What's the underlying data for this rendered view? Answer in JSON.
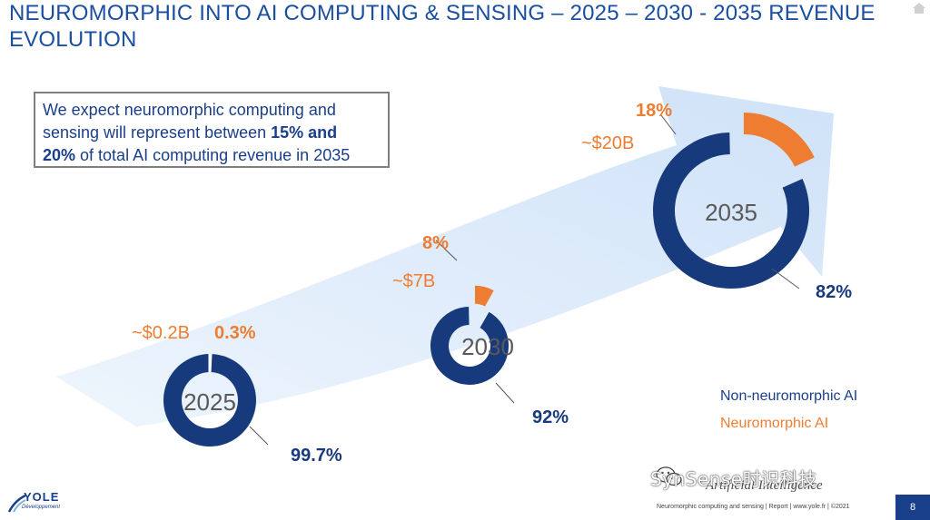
{
  "title": "NEUROMORPHIC INTO AI COMPUTING & SENSING – 2025 – 2030 - 2035 REVENUE EVOLUTION",
  "callout": {
    "line1": "We expect neuromorphic computing and",
    "line2a": "sensing will represent between ",
    "line2b": "15% and",
    "line3a": "20%",
    "line3b": " of total AI computing revenue in 2035"
  },
  "colors": {
    "navy": "#173a7d",
    "orange": "#ee7d31",
    "arrow": "#dbe9fb",
    "title": "#1a4fa0"
  },
  "chart_data": {
    "type": "pie",
    "charts": [
      {
        "year": "2025",
        "neuromorphic_revenue": "~$0.2B",
        "neuromorphic_pct": 0.3,
        "non_neuromorphic_pct": 99.7,
        "neuromorphic_label": "0.3%",
        "non_neuromorphic_label": "99.7%"
      },
      {
        "year": "2030",
        "neuromorphic_revenue": "~$7B",
        "neuromorphic_pct": 8,
        "non_neuromorphic_pct": 92,
        "neuromorphic_label": "8%",
        "non_neuromorphic_label": "92%"
      },
      {
        "year": "2035",
        "neuromorphic_revenue": "~$20B",
        "neuromorphic_pct": 18,
        "non_neuromorphic_pct": 82,
        "neuromorphic_label": "18%",
        "non_neuromorphic_label": "82%"
      }
    ],
    "legend": [
      "Non-neuromorphic AI",
      "Neuromorphic AI"
    ]
  },
  "logo": {
    "name": "YOLE",
    "sub": "Développement"
  },
  "watermark": "SynSense时识科技",
  "watermark_icon": "wechat-icon",
  "faint_text": "Artificial Intelligence",
  "footer": "Neuromorphic computing and sensing | Report | www.yole.fr | ©2021",
  "page_number": "8"
}
